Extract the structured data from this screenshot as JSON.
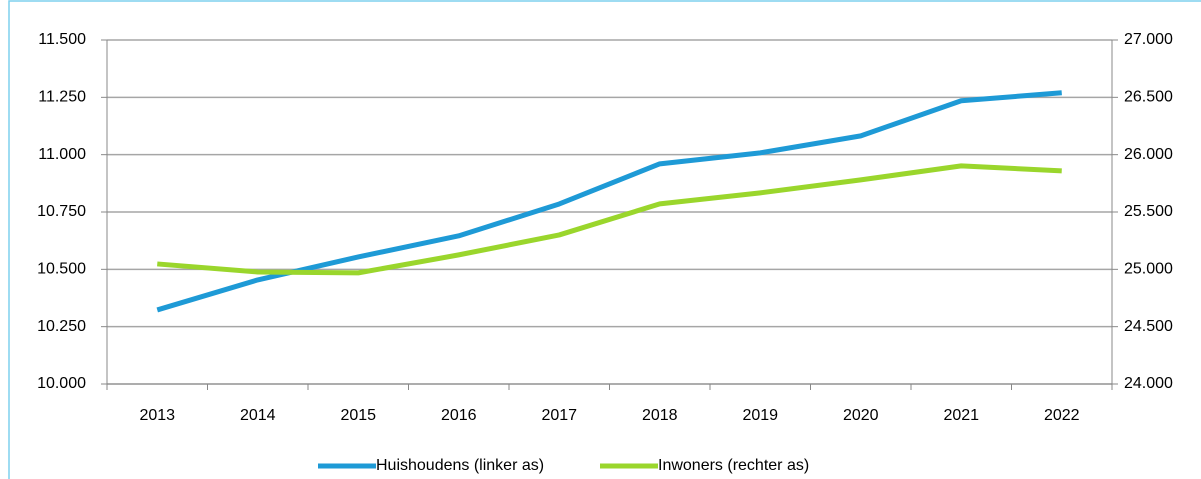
{
  "chart_data": {
    "type": "line",
    "categories": [
      "2013",
      "2014",
      "2015",
      "2016",
      "2017",
      "2018",
      "2019",
      "2020",
      "2021",
      "2022"
    ],
    "series": [
      {
        "name": "Huishoudens (linker as)",
        "color": "#1e9ad6",
        "values": [
          10323,
          10454,
          10554,
          10646,
          10785,
          10960,
          11008,
          11082,
          11235,
          11270
        ]
      },
      {
        "name": "Inwoners (rechter as)",
        "color": "#9ad62c",
        "axis": "y2",
        "values": [
          25047,
          24977,
          24969,
          25126,
          25300,
          25571,
          25667,
          25780,
          25902,
          25859
        ]
      }
    ],
    "ylim": [
      10000,
      11500
    ],
    "yticks": [
      {
        "value": 10000,
        "label": "10.000"
      },
      {
        "value": 10250,
        "label": "10.250"
      },
      {
        "value": 10500,
        "label": "10.500"
      },
      {
        "value": 10750,
        "label": "10.750"
      },
      {
        "value": 11000,
        "label": "11.000"
      },
      {
        "value": 11250,
        "label": "11.250"
      },
      {
        "value": 11500,
        "label": "11.500"
      }
    ],
    "y2lim": [
      24000,
      27000
    ],
    "y2ticks": [
      {
        "value": 24000,
        "label": "24.000"
      },
      {
        "value": 24500,
        "label": "24.500"
      },
      {
        "value": 25000,
        "label": "25.000"
      },
      {
        "value": 25500,
        "label": "25.500"
      },
      {
        "value": 26000,
        "label": "26.000"
      },
      {
        "value": 26500,
        "label": "26.500"
      },
      {
        "value": 27000,
        "label": "27.000"
      }
    ],
    "grid": true,
    "legend": "bottom"
  }
}
